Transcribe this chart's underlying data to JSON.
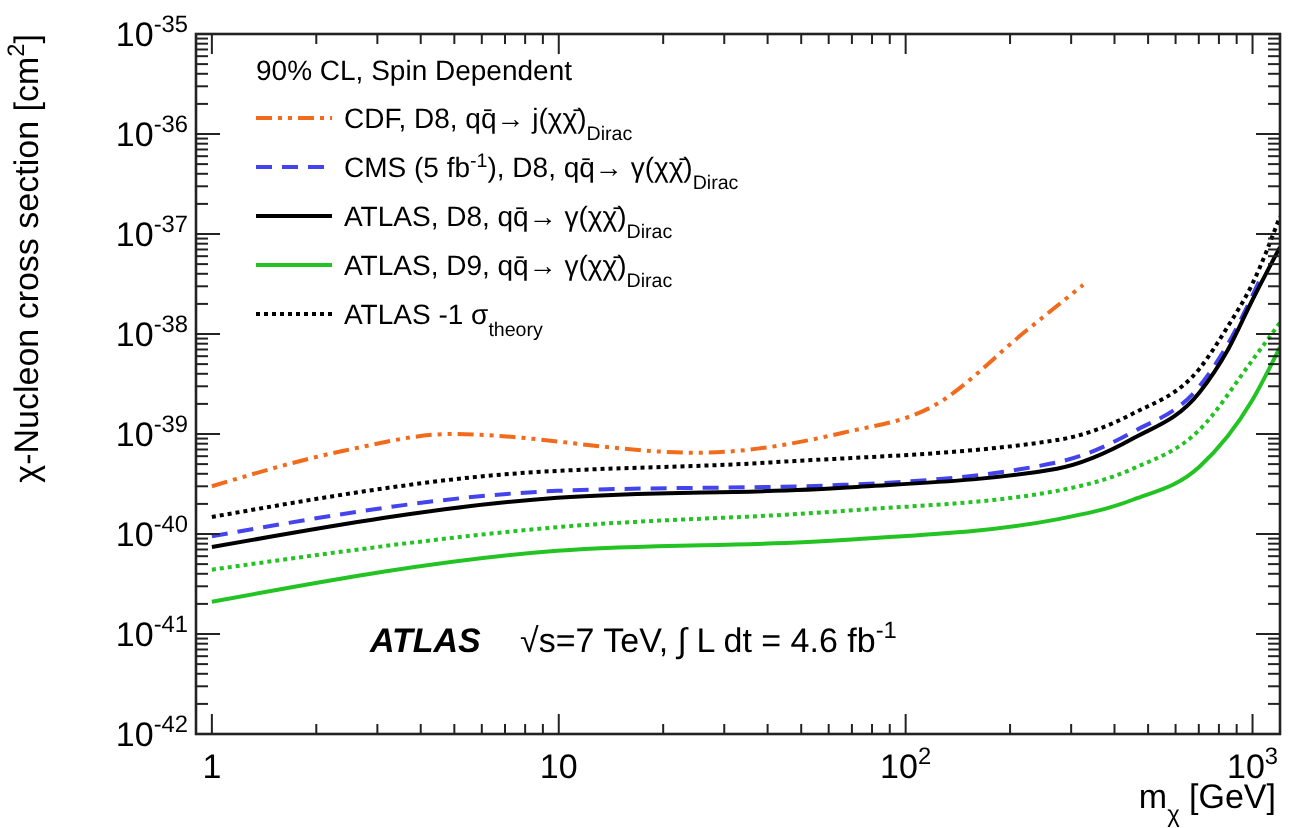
{
  "chart_data": {
    "type": "line",
    "xlabel": "m$_{χ}$ [GeV]",
    "ylabel": "χ-Nucleon cross section [cm$^{2}$]",
    "legend_title": "90% CL, Spin Dependent",
    "log": "xy",
    "grid": false,
    "legend": "top left",
    "xlim": [
      0.9,
      1200
    ],
    "ylim": [
      1e-42,
      1e-35
    ],
    "xticks": [
      1,
      10,
      {
        "value": 100,
        "label": "10$^{2}$"
      },
      {
        "value": 1000,
        "label": "10$^{3}$"
      }
    ],
    "yticks": [
      {
        "value": 1e-42,
        "label": "10$^{-42}$"
      },
      {
        "value": 1e-41,
        "label": "10$^{-41}$"
      },
      {
        "value": 1e-40,
        "label": "10$^{-40}$"
      },
      {
        "value": 1e-39,
        "label": "10$^{-39}$"
      },
      {
        "value": 1e-38,
        "label": "10$^{-38}$"
      },
      {
        "value": 1e-37,
        "label": "10$^{-37}$"
      },
      {
        "value": 1e-36,
        "label": "10$^{-36}$"
      },
      {
        "value": 1e-35,
        "label": "10$^{-35}$"
      }
    ],
    "series": [
      {
        "name": "CDF, D8, qq̄→ j(χχ̄)$_{Dirac}$",
        "color": "#f26b1d",
        "line_style": "dashdot",
        "x": [
          1,
          2.4,
          4.9,
          25,
          66,
          120,
          222,
          325
        ],
        "values": [
          3e-40,
          6.8e-40,
          1e-39,
          6.5e-40,
          1.03e-39,
          1.9e-39,
          1.07e-38,
          3.1e-38
        ]
      },
      {
        "name": "CMS (5 fb$^{-1}$), D8, qq̄→ γ(χχ̄)$_{Dirac}$",
        "color": "#4444ee",
        "line_style": "dashed",
        "x": [
          1,
          9.9,
          66,
          273,
          452,
          703,
          850,
          1050
        ],
        "values": [
          9.5e-41,
          2.7e-40,
          3.1e-40,
          5.2e-40,
          1.05e-39,
          3e-39,
          8e-39,
          3.5e-38
        ]
      },
      {
        "name": "ATLAS, D8, qq̄→ γ(χχ̄)$_{Dirac}$",
        "color": "#000000",
        "line_style": "solid",
        "x": [
          1,
          9.9,
          66,
          273,
          452,
          703,
          850,
          1000,
          1200
        ],
        "values": [
          7.4e-41,
          2.3e-40,
          2.9e-40,
          4.5e-40,
          9e-40,
          2.6e-39,
          7e-39,
          2.2e-38,
          7.4e-38
        ]
      },
      {
        "name": "ATLAS, D9, qq̄→ γ(χχ̄)$_{Dirac}$",
        "color": "#22c322",
        "line_style": "solid",
        "x": [
          1,
          9.9,
          66,
          273,
          452,
          703,
          1000,
          1200
        ],
        "values": [
          2.1e-41,
          6.8e-41,
          8.7e-41,
          1.4e-40,
          2.2e-40,
          4.7e-40,
          2.2e-39,
          7.4e-39
        ]
      },
      {
        "name": "ATLAS -1 σ$_{theory}$",
        "color": "#000000",
        "line_style": "dotted",
        "x": [
          1,
          6.15,
          41,
          273,
          452,
          703,
          850,
          1000,
          1200
        ],
        "values": [
          1.48e-40,
          3.8e-40,
          5.2e-40,
          8.7e-40,
          1.6e-39,
          4.5e-39,
          1.2e-38,
          3.2e-38,
          1.5e-37
        ]
      },
      {
        "color": "#22c322",
        "line_style": "dotted",
        "x": [
          1,
          9.9,
          66,
          273,
          452,
          703,
          1000,
          1200
        ],
        "values": [
          4.4e-41,
          1.17e-40,
          1.7e-40,
          2.7e-40,
          4.5e-40,
          1.1e-39,
          5.5e-39,
          1.3e-38
        ]
      }
    ],
    "annotations": [
      "ATLAS",
      "√s=7 TeV, ∫ L dt = 4.6 fb$^{-1}$"
    ]
  }
}
